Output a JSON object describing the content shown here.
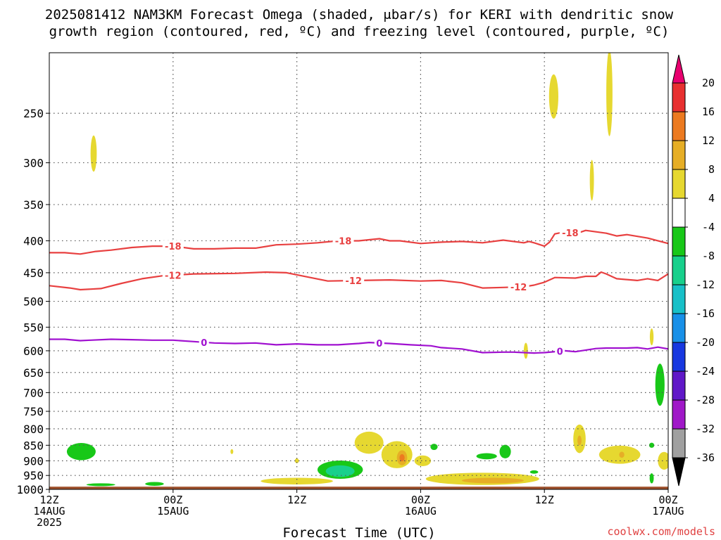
{
  "title": {
    "line1": "2025081412 NAM3KM Forecast Omega (shaded, μbar/s) for KERI with dendritic snow",
    "line2": "growth region (contoured, red, ºC) and freezing level (contoured, purple, ºC)"
  },
  "credit": "coolwx.com/models",
  "chart_data": {
    "type": "contour",
    "title": "2025081412 NAM3KM Forecast Omega (shaded, μbar/s) for KERI with dendritic snow growth region (contoured, red, ºC) and freezing level (contoured, purple, ºC)",
    "xlabel": "Forecast Time (UTC)",
    "ylabel": "",
    "x_range_hours": [
      0,
      60
    ],
    "y_range_hpa": [
      1000,
      200
    ],
    "y_scale": "log",
    "y_ticks": [
      250,
      300,
      350,
      400,
      450,
      500,
      550,
      600,
      650,
      700,
      750,
      800,
      850,
      900,
      950,
      1000
    ],
    "x_ticks": [
      {
        "hour": 0,
        "lines": [
          "12Z",
          "14AUG",
          "2025"
        ]
      },
      {
        "hour": 12,
        "lines": [
          "00Z",
          "15AUG"
        ]
      },
      {
        "hour": 24,
        "lines": [
          "12Z",
          ""
        ]
      },
      {
        "hour": 36,
        "lines": [
          "00Z",
          "16AUG"
        ]
      },
      {
        "hour": 48,
        "lines": [
          "12Z",
          ""
        ]
      },
      {
        "hour": 60,
        "lines": [
          "00Z",
          "17AUG"
        ]
      }
    ],
    "grid": true,
    "colorbar": {
      "levels": [
        20,
        16,
        12,
        8,
        4,
        -4,
        -8,
        -12,
        -16,
        -20,
        -24,
        -28,
        -32,
        -36
      ],
      "colors": [
        "#e8006f",
        "#e83030",
        "#ec7a20",
        "#e6ae26",
        "#e6d830",
        "#ffffff",
        "#18c818",
        "#18d08c",
        "#18c0c8",
        "#1890e8",
        "#1838e0",
        "#6018c8",
        "#a018c8",
        "#a0a0a0",
        "#000000"
      ]
    },
    "contours": [
      {
        "name": "-18",
        "color": "#e84040",
        "labels": [
          {
            "hour": 12,
            "text": "-18"
          },
          {
            "hour": 28.5,
            "text": "-18"
          },
          {
            "hour": 50.5,
            "text": "-18"
          }
        ],
        "points": [
          [
            0,
            418
          ],
          [
            1.5,
            418
          ],
          [
            3,
            420
          ],
          [
            4.5,
            416
          ],
          [
            6,
            414
          ],
          [
            8,
            410
          ],
          [
            10,
            408
          ],
          [
            12,
            408
          ],
          [
            14,
            412
          ],
          [
            16,
            412
          ],
          [
            18,
            411
          ],
          [
            20,
            411
          ],
          [
            22,
            406
          ],
          [
            24,
            405
          ],
          [
            26,
            403
          ],
          [
            28,
            400
          ],
          [
            30,
            400
          ],
          [
            32,
            397
          ],
          [
            33,
            400
          ],
          [
            34,
            400
          ],
          [
            36,
            404
          ],
          [
            38,
            402
          ],
          [
            40,
            401
          ],
          [
            42,
            403
          ],
          [
            44,
            399
          ],
          [
            46,
            403
          ],
          [
            46.5,
            401
          ],
          [
            47,
            403
          ],
          [
            48,
            408
          ],
          [
            48.5,
            402
          ],
          [
            49,
            390
          ],
          [
            50,
            387
          ],
          [
            51,
            390
          ],
          [
            52,
            385
          ],
          [
            54,
            389
          ],
          [
            55,
            393
          ],
          [
            56,
            391
          ],
          [
            58,
            396
          ],
          [
            60,
            404
          ]
        ]
      },
      {
        "name": "-12",
        "color": "#e84040",
        "labels": [
          {
            "hour": 12,
            "text": "-12"
          },
          {
            "hour": 29.5,
            "text": "-12"
          },
          {
            "hour": 45.5,
            "text": "-12"
          }
        ],
        "points": [
          [
            0,
            472
          ],
          [
            2,
            476
          ],
          [
            3,
            479
          ],
          [
            5,
            477
          ],
          [
            7,
            468
          ],
          [
            9,
            460
          ],
          [
            11,
            455
          ],
          [
            14,
            452
          ],
          [
            18,
            451
          ],
          [
            21,
            449
          ],
          [
            23,
            450
          ],
          [
            27,
            464
          ],
          [
            30,
            463
          ],
          [
            33,
            462
          ],
          [
            36,
            464
          ],
          [
            38,
            463
          ],
          [
            40,
            467
          ],
          [
            42,
            476
          ],
          [
            44,
            475
          ],
          [
            46,
            474
          ],
          [
            47,
            471
          ],
          [
            48,
            466
          ],
          [
            49,
            458
          ],
          [
            51,
            459
          ],
          [
            52,
            456
          ],
          [
            53,
            456
          ],
          [
            53.5,
            449
          ],
          [
            54,
            452
          ],
          [
            55,
            460
          ],
          [
            57,
            463
          ],
          [
            58,
            460
          ],
          [
            59,
            463
          ],
          [
            60,
            452
          ]
        ]
      },
      {
        "name": "0",
        "color": "#a010d0",
        "labels": [
          {
            "hour": 15,
            "text": "0"
          },
          {
            "hour": 32,
            "text": "0"
          },
          {
            "hour": 49.5,
            "text": "0"
          }
        ],
        "points": [
          [
            0,
            575
          ],
          [
            1.5,
            575
          ],
          [
            3,
            578
          ],
          [
            4,
            577
          ],
          [
            6,
            575
          ],
          [
            8,
            576
          ],
          [
            10,
            577
          ],
          [
            12,
            577
          ],
          [
            14,
            580
          ],
          [
            16,
            583
          ],
          [
            18,
            584
          ],
          [
            20,
            583
          ],
          [
            22,
            587
          ],
          [
            24,
            585
          ],
          [
            26,
            587
          ],
          [
            28,
            587
          ],
          [
            30,
            584
          ],
          [
            31,
            582
          ],
          [
            33,
            584
          ],
          [
            35,
            587
          ],
          [
            37,
            589
          ],
          [
            38,
            593
          ],
          [
            40,
            596
          ],
          [
            42,
            604
          ],
          [
            44,
            603
          ],
          [
            45,
            603
          ],
          [
            47,
            605
          ],
          [
            48,
            604
          ],
          [
            50,
            600
          ],
          [
            51,
            602
          ],
          [
            53,
            595
          ],
          [
            54,
            594
          ],
          [
            56,
            594
          ],
          [
            57,
            593
          ],
          [
            58,
            596
          ],
          [
            59,
            592
          ],
          [
            60,
            596
          ]
        ]
      }
    ],
    "shaded_regions": [
      {
        "level": 8,
        "color": "#e6d830",
        "hour": 4.3,
        "hpa": 290,
        "rx_h": 0.3,
        "ry_hpa": 20
      },
      {
        "level": 8,
        "color": "#e6d830",
        "hour": 48.9,
        "hpa": 235,
        "rx_h": 0.45,
        "ry_hpa": 20
      },
      {
        "level": 8,
        "color": "#e6d830",
        "hour": 54.3,
        "hpa": 232,
        "rx_h": 0.3,
        "ry_hpa": 40
      },
      {
        "level": 8,
        "color": "#e6d830",
        "hour": 52.6,
        "hpa": 320,
        "rx_h": 0.2,
        "ry_hpa": 25
      },
      {
        "level": 8,
        "color": "#e6d830",
        "hour": 46.2,
        "hpa": 600,
        "rx_h": 0.2,
        "ry_hpa": 18
      },
      {
        "level": 8,
        "color": "#e6d830",
        "hour": 58.4,
        "hpa": 570,
        "rx_h": 0.18,
        "ry_hpa": 18
      },
      {
        "level": -4,
        "color": "#18c818",
        "hour": 59.2,
        "hpa": 680,
        "rx_h": 0.45,
        "ry_hpa": 55
      },
      {
        "level": -4,
        "color": "#18c818",
        "hour": 3.1,
        "hpa": 870,
        "rx_h": 1.4,
        "ry_hpa": 28
      },
      {
        "level": -4,
        "color": "#18c818",
        "hour": 28.2,
        "hpa": 930,
        "rx_h": 2.2,
        "ry_hpa": 32
      },
      {
        "level": -8,
        "color": "#18d08c",
        "hour": 28.2,
        "hpa": 935,
        "rx_h": 1.4,
        "ry_hpa": 20
      },
      {
        "level": -4,
        "color": "#18c818",
        "hour": 37.3,
        "hpa": 855,
        "rx_h": 0.35,
        "ry_hpa": 10
      },
      {
        "level": -4,
        "color": "#18c818",
        "hour": 44.2,
        "hpa": 870,
        "rx_h": 0.55,
        "ry_hpa": 22
      },
      {
        "level": -4,
        "color": "#18c818",
        "hour": 42.4,
        "hpa": 885,
        "rx_h": 1.0,
        "ry_hpa": 10
      },
      {
        "level": -4,
        "color": "#18c818",
        "hour": 58.4,
        "hpa": 850,
        "rx_h": 0.25,
        "ry_hpa": 8
      },
      {
        "level": -4,
        "color": "#18c818",
        "hour": 58.4,
        "hpa": 960,
        "rx_h": 0.2,
        "ry_hpa": 18
      },
      {
        "level": -4,
        "color": "#18c818",
        "hour": 47.0,
        "hpa": 938,
        "rx_h": 0.4,
        "ry_hpa": 6
      },
      {
        "level": -4,
        "color": "#18c818",
        "hour": 10.2,
        "hpa": 980,
        "rx_h": 0.9,
        "ry_hpa": 7
      },
      {
        "level": -4,
        "color": "#18c818",
        "hour": 5.0,
        "hpa": 983,
        "rx_h": 1.4,
        "ry_hpa": 5
      },
      {
        "level": 8,
        "color": "#e6d830",
        "hour": 31.0,
        "hpa": 842,
        "rx_h": 1.4,
        "ry_hpa": 35
      },
      {
        "level": 8,
        "color": "#e6d830",
        "hour": 33.7,
        "hpa": 880,
        "rx_h": 1.5,
        "ry_hpa": 45
      },
      {
        "level": 12,
        "color": "#e6ae26",
        "hour": 34.2,
        "hpa": 890,
        "rx_h": 0.5,
        "ry_hpa": 25
      },
      {
        "level": 16,
        "color": "#ec7a20",
        "hour": 34.2,
        "hpa": 890,
        "rx_h": 0.25,
        "ry_hpa": 12
      },
      {
        "level": 8,
        "color": "#e6d830",
        "hour": 36.2,
        "hpa": 900,
        "rx_h": 0.8,
        "ry_hpa": 18
      },
      {
        "level": 8,
        "color": "#e6d830",
        "hour": 24.0,
        "hpa": 970,
        "rx_h": 3.5,
        "ry_hpa": 12
      },
      {
        "level": 8,
        "color": "#e6d830",
        "hour": 42.0,
        "hpa": 962,
        "rx_h": 5.5,
        "ry_hpa": 22
      },
      {
        "level": 12,
        "color": "#e6ae26",
        "hour": 43.0,
        "hpa": 968,
        "rx_h": 3.0,
        "ry_hpa": 10
      },
      {
        "level": 8,
        "color": "#e6d830",
        "hour": 51.4,
        "hpa": 830,
        "rx_h": 0.6,
        "ry_hpa": 45
      },
      {
        "level": 12,
        "color": "#e6ae26",
        "hour": 51.4,
        "hpa": 835,
        "rx_h": 0.2,
        "ry_hpa": 15
      },
      {
        "level": 8,
        "color": "#e6d830",
        "hour": 55.3,
        "hpa": 880,
        "rx_h": 2.0,
        "ry_hpa": 30
      },
      {
        "level": 12,
        "color": "#e6ae26",
        "hour": 55.5,
        "hpa": 880,
        "rx_h": 0.25,
        "ry_hpa": 10
      },
      {
        "level": 8,
        "color": "#e6d830",
        "hour": 59.6,
        "hpa": 900,
        "rx_h": 0.6,
        "ry_hpa": 30
      },
      {
        "level": 8,
        "color": "#e6d830",
        "hour": 17.7,
        "hpa": 870,
        "rx_h": 0.12,
        "ry_hpa": 8
      },
      {
        "level": 8,
        "color": "#e6d830",
        "hour": 24.0,
        "hpa": 900,
        "rx_h": 0.2,
        "ry_hpa": 8
      }
    ],
    "ground_below_hpa": 990
  }
}
